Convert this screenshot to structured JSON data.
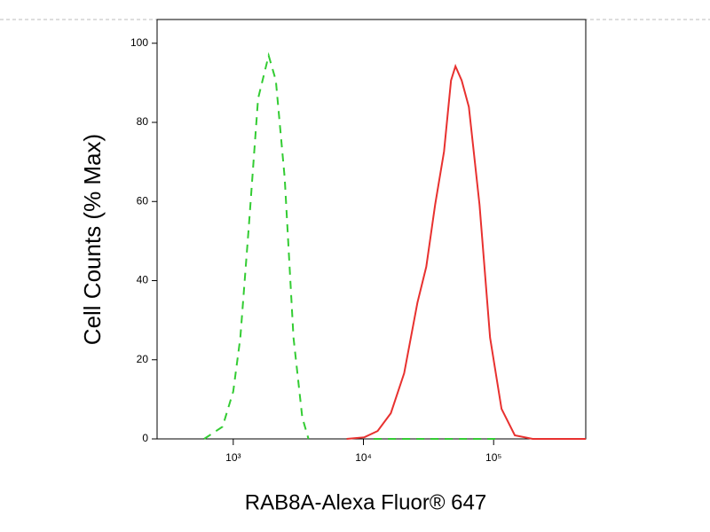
{
  "chart_data": {
    "type": "line",
    "x_label": "RAB8A-Alexa Fluor® 647",
    "y_label": "Cell Counts (% Max)",
    "xscale": "log",
    "xlim": [
      260,
      510000
    ],
    "ylim": [
      0,
      106
    ],
    "xticks": [
      {
        "value": 1000,
        "label": "10³"
      },
      {
        "value": 10000,
        "label": "10⁴"
      },
      {
        "value": 100000,
        "label": "10⁵"
      }
    ],
    "yticks": [
      0,
      20,
      40,
      60,
      80,
      100
    ],
    "series": [
      {
        "color": "#33cc33",
        "dash": true,
        "x": [
          597,
          828,
          1000,
          1133,
          1325,
          1551,
          1871,
          2124,
          2484,
          2904,
          3389,
          3785,
          null,
          12000,
          110000
        ],
        "y": [
          0,
          3.1,
          12,
          25.6,
          54.7,
          86,
          96.9,
          90.6,
          65.9,
          25.6,
          5.4,
          0,
          null,
          0,
          0
        ]
      },
      {
        "color": "#e8312f",
        "dash": false,
        "x": [
          7430,
          10160,
          12850,
          16250,
          20560,
          26000,
          30400,
          35560,
          41600,
          47100,
          50950,
          56850,
          64500,
          77900,
          93900,
          115000,
          145500,
          199500,
          510000
        ],
        "y": [
          0,
          0.4,
          2,
          6.5,
          16.6,
          34.5,
          43.5,
          59.2,
          72.6,
          90.6,
          94.2,
          90.6,
          83.9,
          59.2,
          25.6,
          7.6,
          0.9,
          0,
          0
        ]
      }
    ]
  }
}
